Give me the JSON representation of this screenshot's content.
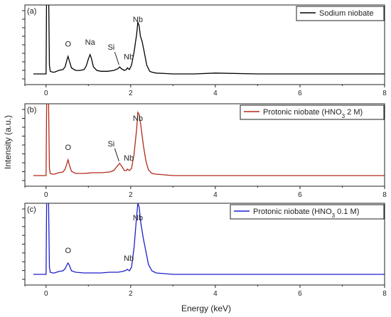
{
  "chart_data": [
    {
      "type": "line",
      "panel": "(a)",
      "legend": "Sodium niobate",
      "color": "#000000",
      "xlim": [
        -0.5,
        8
      ],
      "xticks": [
        0,
        2,
        4,
        6,
        8
      ],
      "x_tick_labels": [
        "0",
        "2",
        "4",
        "6",
        "8"
      ],
      "x": [
        -0.3,
        0.0,
        0.02,
        0.05,
        0.08,
        0.1,
        0.15,
        0.2,
        0.3,
        0.4,
        0.45,
        0.5,
        0.52,
        0.55,
        0.6,
        0.7,
        0.8,
        0.9,
        0.95,
        1.0,
        1.04,
        1.07,
        1.12,
        1.2,
        1.3,
        1.45,
        1.6,
        1.7,
        1.74,
        1.78,
        1.85,
        1.9,
        1.92,
        1.97,
        2.02,
        2.08,
        2.14,
        2.17,
        2.2,
        2.23,
        2.27,
        2.32,
        2.38,
        2.45,
        2.5,
        2.6,
        2.8,
        3.0,
        3.5,
        4.0,
        5.0,
        6.0,
        7.0,
        8.0
      ],
      "y": [
        0.0,
        0.0,
        1.5,
        1.5,
        0.1,
        0.03,
        0.02,
        0.02,
        0.04,
        0.05,
        0.08,
        0.17,
        0.2,
        0.15,
        0.07,
        0.04,
        0.04,
        0.05,
        0.09,
        0.17,
        0.22,
        0.18,
        0.08,
        0.04,
        0.03,
        0.03,
        0.04,
        0.06,
        0.08,
        0.06,
        0.04,
        0.05,
        0.07,
        0.05,
        0.1,
        0.25,
        0.45,
        0.59,
        0.55,
        0.43,
        0.37,
        0.25,
        0.1,
        0.03,
        0.02,
        0.01,
        0.005,
        0.0,
        0.0,
        0.01,
        0.0,
        0.0,
        0.0,
        0.0
      ],
      "annotations": [
        {
          "text": "O",
          "x": 0.52
        },
        {
          "text": "Na",
          "x": 1.04
        },
        {
          "text": "Si",
          "x": 1.74
        },
        {
          "text": "Nb",
          "x": 1.92
        },
        {
          "text": "Nb",
          "x": 2.17
        }
      ]
    },
    {
      "type": "line",
      "panel": "(b)",
      "legend": "Protonic niobate (HNO3 2 M)",
      "color": "#b22a1a",
      "xlim": [
        -0.5,
        8
      ],
      "xticks": [
        0,
        2,
        4,
        6,
        8
      ],
      "x_tick_labels": [
        "0",
        "2",
        "4",
        "6",
        "8"
      ],
      "x": [
        -0.3,
        0.0,
        0.02,
        0.05,
        0.08,
        0.1,
        0.15,
        0.2,
        0.3,
        0.4,
        0.45,
        0.5,
        0.52,
        0.55,
        0.6,
        0.7,
        0.9,
        1.1,
        1.3,
        1.5,
        1.6,
        1.68,
        1.74,
        1.8,
        1.85,
        1.9,
        1.92,
        1.97,
        2.02,
        2.08,
        2.14,
        2.17,
        2.2,
        2.24,
        2.3,
        2.36,
        2.42,
        2.5,
        2.6,
        2.8,
        3.0,
        4.0,
        5.0,
        6.0,
        7.0,
        8.0
      ],
      "y": [
        0.0,
        0.0,
        1.5,
        1.5,
        0.1,
        0.03,
        0.02,
        0.02,
        0.04,
        0.05,
        0.09,
        0.18,
        0.22,
        0.15,
        0.06,
        0.03,
        0.03,
        0.04,
        0.04,
        0.05,
        0.07,
        0.13,
        0.17,
        0.12,
        0.07,
        0.07,
        0.09,
        0.07,
        0.1,
        0.3,
        0.65,
        0.88,
        0.85,
        0.7,
        0.42,
        0.2,
        0.08,
        0.03,
        0.02,
        0.01,
        0.0,
        0.0,
        0.0,
        0.0,
        0.0,
        0.0
      ],
      "annotations": [
        {
          "text": "O",
          "x": 0.52
        },
        {
          "text": "Si",
          "x": 1.74
        },
        {
          "text": "Nb",
          "x": 1.92
        },
        {
          "text": "Nb",
          "x": 2.17
        }
      ]
    },
    {
      "type": "line",
      "panel": "(c)",
      "legend": "Protonic niobate (HNO3 0.1 M)",
      "color": "#1f1fcc",
      "xlim": [
        -0.5,
        8
      ],
      "xticks": [
        0,
        2,
        4,
        6,
        8
      ],
      "x_tick_labels": [
        "0",
        "2",
        "4",
        "6",
        "8"
      ],
      "x": [
        -0.3,
        0.0,
        0.02,
        0.05,
        0.08,
        0.1,
        0.15,
        0.2,
        0.3,
        0.4,
        0.45,
        0.5,
        0.52,
        0.55,
        0.6,
        0.7,
        0.9,
        1.1,
        1.3,
        1.5,
        1.7,
        1.8,
        1.86,
        1.9,
        1.92,
        1.97,
        2.02,
        2.08,
        2.14,
        2.17,
        2.2,
        2.24,
        2.3,
        2.36,
        2.42,
        2.5,
        2.6,
        2.8,
        3.0,
        4.0,
        5.0,
        6.0,
        7.0,
        8.0
      ],
      "y": [
        0.0,
        0.0,
        1.5,
        1.5,
        0.1,
        0.03,
        0.02,
        0.02,
        0.04,
        0.05,
        0.08,
        0.14,
        0.16,
        0.13,
        0.05,
        0.03,
        0.02,
        0.02,
        0.02,
        0.03,
        0.03,
        0.04,
        0.05,
        0.06,
        0.07,
        0.05,
        0.1,
        0.38,
        0.82,
        1.0,
        0.95,
        0.72,
        0.5,
        0.32,
        0.14,
        0.05,
        0.02,
        0.01,
        0.0,
        0.0,
        0.0,
        0.0,
        0.0,
        0.0
      ],
      "annotations": [
        {
          "text": "O",
          "x": 0.52
        },
        {
          "text": "Nb",
          "x": 1.92
        },
        {
          "text": "Nb",
          "x": 2.17
        }
      ]
    }
  ],
  "axes": {
    "xlabel": "Energy (keV)",
    "ylabel": "Intensity (a.u.)"
  }
}
